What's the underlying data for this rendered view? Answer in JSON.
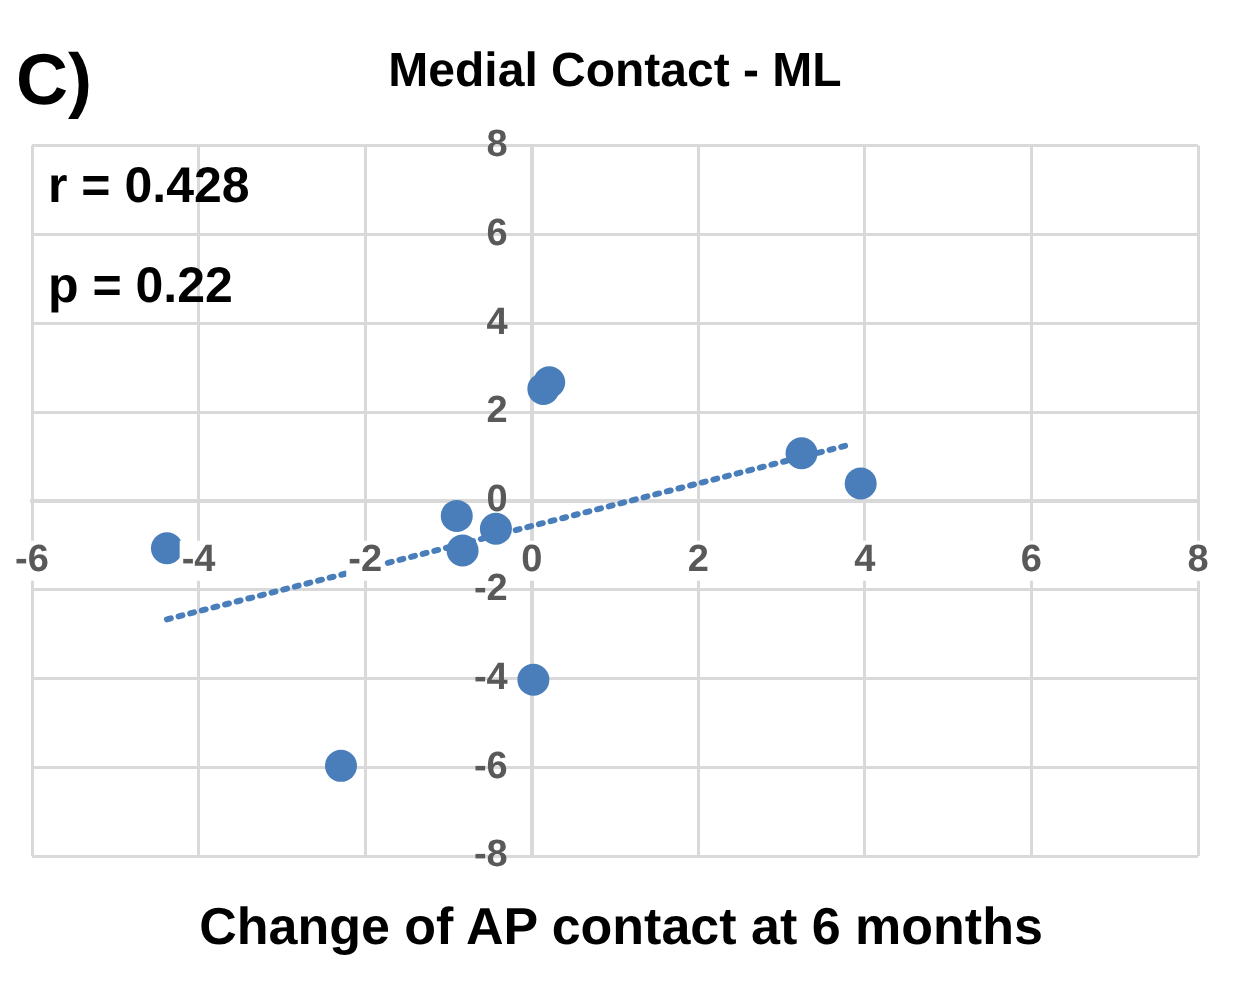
{
  "chart_data": {
    "type": "scatter",
    "title": "Medial Contact - ML",
    "xlabel": "Change of AP contact at 6 months",
    "annotations": [
      "C)",
      "r = 0.428",
      "p = 0.22"
    ],
    "xlim": [
      -6,
      8
    ],
    "xticks": [
      -6,
      -4,
      -2,
      0,
      2,
      4,
      6,
      8
    ],
    "ylim": [
      -8,
      8
    ],
    "yticks": [
      -8,
      -6,
      -4,
      -2,
      0,
      2,
      4,
      6,
      8
    ],
    "grid": true,
    "legend": false,
    "series": [
      {
        "type": "scatter",
        "color": "#4a7ebb",
        "marker": "circle",
        "x": [
          -4.38,
          -2.29,
          -0.9,
          -0.83,
          -0.43,
          0.02,
          0.14,
          0.21,
          3.24,
          3.95
        ],
        "values": [
          -1.07,
          -5.97,
          -0.34,
          -1.12,
          -0.63,
          -4.03,
          2.52,
          2.67,
          1.07,
          0.39
        ]
      },
      {
        "type": "line",
        "color": "#4a7ebb",
        "marker": "none",
        "line_style": "dotted",
        "x": [
          -4.38,
          3.81
        ],
        "values": [
          -2.67,
          1.26
        ]
      }
    ]
  }
}
